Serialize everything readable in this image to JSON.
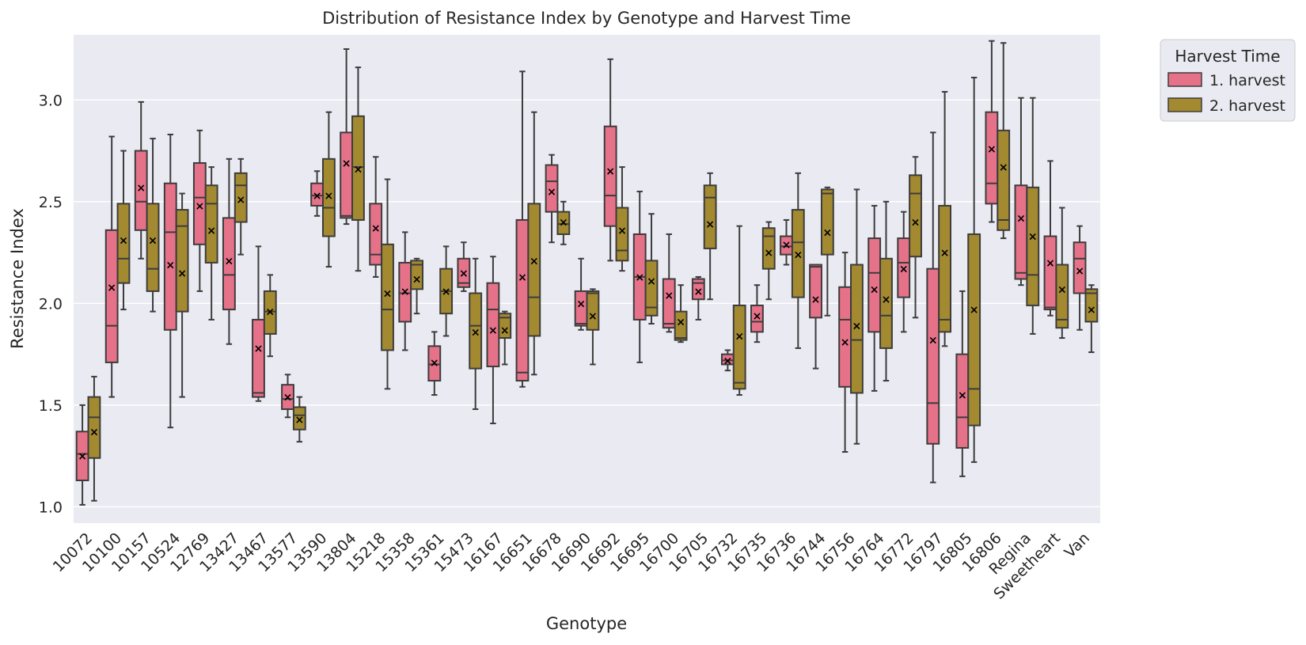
{
  "chart_data": {
    "type": "box",
    "title": "Distribution of Resistance Index by Genotype and Harvest Time",
    "xlabel": "Genotype",
    "ylabel": "Resistance Index",
    "ylim": [
      0.92,
      3.32
    ],
    "yticks": [
      "1.0",
      "1.5",
      "2.0",
      "2.5",
      "3.0"
    ],
    "grid": "horizontal",
    "legend": {
      "title": "Harvest Time",
      "placement": "outside-top-right",
      "entries": [
        "1. harvest",
        "2. harvest"
      ]
    },
    "mean_marker": "×",
    "colors": {
      "1. harvest": "#e6728a",
      "2. harvest": "#a38a30",
      "background": "#eaeaf2",
      "grid": "#ffffff",
      "box_edge": "#3c3c3c"
    },
    "categories": [
      "10072",
      "10100",
      "10157",
      "10524",
      "12769",
      "13427",
      "13467",
      "13577",
      "13590",
      "13804",
      "15218",
      "15358",
      "15361",
      "15473",
      "16167",
      "16651",
      "16678",
      "16690",
      "16692",
      "16695",
      "16700",
      "16705",
      "16732",
      "16735",
      "16736",
      "16744",
      "16756",
      "16764",
      "16772",
      "16797",
      "16805",
      "16806",
      "Regina",
      "Sweetheart",
      "Van"
    ],
    "series": [
      {
        "name": "1. harvest",
        "boxes": [
          {
            "whislo": 1.01,
            "q1": 1.13,
            "med": 1.26,
            "q3": 1.37,
            "whishi": 1.5,
            "mean": 1.25
          },
          {
            "whislo": 1.54,
            "q1": 1.71,
            "med": 1.89,
            "q3": 2.36,
            "whishi": 2.82,
            "mean": 2.08
          },
          {
            "whislo": 2.22,
            "q1": 2.36,
            "med": 2.5,
            "q3": 2.75,
            "whishi": 2.99,
            "mean": 2.57
          },
          {
            "whislo": 1.39,
            "q1": 1.87,
            "med": 2.35,
            "q3": 2.59,
            "whishi": 2.83,
            "mean": 2.19
          },
          {
            "whislo": 2.06,
            "q1": 2.29,
            "med": 2.52,
            "q3": 2.69,
            "whishi": 2.85,
            "mean": 2.48
          },
          {
            "whislo": 1.8,
            "q1": 1.97,
            "med": 2.14,
            "q3": 2.42,
            "whishi": 2.71,
            "mean": 2.21
          },
          {
            "whislo": 1.52,
            "q1": 1.54,
            "med": 1.56,
            "q3": 1.92,
            "whishi": 2.28,
            "mean": 1.78
          },
          {
            "whislo": 1.44,
            "q1": 1.48,
            "med": 1.53,
            "q3": 1.6,
            "whishi": 1.65,
            "mean": 1.54
          },
          {
            "whislo": 2.43,
            "q1": 2.48,
            "med": 2.53,
            "q3": 2.59,
            "whishi": 2.65,
            "mean": 2.53
          },
          {
            "whislo": 2.39,
            "q1": 2.42,
            "med": 2.43,
            "q3": 2.84,
            "whishi": 3.25,
            "mean": 2.69
          },
          {
            "whislo": 2.13,
            "q1": 2.19,
            "med": 2.24,
            "q3": 2.49,
            "whishi": 2.72,
            "mean": 2.37
          },
          {
            "whislo": 1.77,
            "q1": 1.91,
            "med": 2.05,
            "q3": 2.2,
            "whishi": 2.35,
            "mean": 2.06
          },
          {
            "whislo": 1.55,
            "q1": 1.62,
            "med": 1.7,
            "q3": 1.79,
            "whishi": 1.86,
            "mean": 1.71
          },
          {
            "whislo": 2.06,
            "q1": 2.08,
            "med": 2.1,
            "q3": 2.22,
            "whishi": 2.3,
            "mean": 2.15
          },
          {
            "whislo": 1.41,
            "q1": 1.69,
            "med": 1.97,
            "q3": 2.1,
            "whishi": 2.23,
            "mean": 1.87
          },
          {
            "whislo": 1.59,
            "q1": 1.62,
            "med": 1.66,
            "q3": 2.41,
            "whishi": 3.14,
            "mean": 2.13
          },
          {
            "whislo": 2.3,
            "q1": 2.45,
            "med": 2.6,
            "q3": 2.68,
            "whishi": 2.73,
            "mean": 2.55
          },
          {
            "whislo": 1.87,
            "q1": 1.89,
            "med": 1.9,
            "q3": 2.06,
            "whishi": 2.22,
            "mean": 2.0
          },
          {
            "whislo": 2.21,
            "q1": 2.38,
            "med": 2.53,
            "q3": 2.87,
            "whishi": 3.2,
            "mean": 2.65
          },
          {
            "whislo": 1.71,
            "q1": 1.92,
            "med": 2.13,
            "q3": 2.34,
            "whishi": 2.55,
            "mean": 2.13
          },
          {
            "whislo": 1.86,
            "q1": 1.88,
            "med": 1.9,
            "q3": 2.12,
            "whishi": 2.34,
            "mean": 2.04
          },
          {
            "whislo": 1.92,
            "q1": 2.02,
            "med": 2.1,
            "q3": 2.12,
            "whishi": 2.13,
            "mean": 2.06
          },
          {
            "whislo": 1.67,
            "q1": 1.7,
            "med": 1.72,
            "q3": 1.75,
            "whishi": 1.77,
            "mean": 1.72
          },
          {
            "whislo": 1.81,
            "q1": 1.86,
            "med": 1.91,
            "q3": 1.99,
            "whishi": 2.09,
            "mean": 1.94
          },
          {
            "whislo": 2.19,
            "q1": 2.24,
            "med": 2.28,
            "q3": 2.33,
            "whishi": 2.41,
            "mean": 2.29
          },
          {
            "whislo": 1.68,
            "q1": 1.93,
            "med": 2.18,
            "q3": 2.19,
            "whishi": 2.19,
            "mean": 2.02
          },
          {
            "whislo": 1.27,
            "q1": 1.59,
            "med": 1.92,
            "q3": 2.08,
            "whishi": 2.25,
            "mean": 1.81
          },
          {
            "whislo": 1.57,
            "q1": 1.86,
            "med": 2.15,
            "q3": 2.32,
            "whishi": 2.48,
            "mean": 2.07
          },
          {
            "whislo": 1.86,
            "q1": 2.03,
            "med": 2.2,
            "q3": 2.32,
            "whishi": 2.45,
            "mean": 2.17
          },
          {
            "whislo": 1.12,
            "q1": 1.31,
            "med": 1.51,
            "q3": 2.17,
            "whishi": 2.84,
            "mean": 1.82
          },
          {
            "whislo": 1.15,
            "q1": 1.29,
            "med": 1.44,
            "q3": 1.75,
            "whishi": 2.06,
            "mean": 1.55
          },
          {
            "whislo": 2.4,
            "q1": 2.49,
            "med": 2.59,
            "q3": 2.94,
            "whishi": 3.29,
            "mean": 2.76
          },
          {
            "whislo": 2.09,
            "q1": 2.12,
            "med": 2.15,
            "q3": 2.58,
            "whishi": 3.01,
            "mean": 2.42
          },
          {
            "whislo": 1.94,
            "q1": 1.97,
            "med": 1.98,
            "q3": 2.33,
            "whishi": 2.7,
            "mean": 2.2
          },
          {
            "whislo": 1.87,
            "q1": 2.05,
            "med": 2.22,
            "q3": 2.3,
            "whishi": 2.38,
            "mean": 2.16
          }
        ]
      },
      {
        "name": "2. harvest",
        "boxes": [
          {
            "whislo": 1.03,
            "q1": 1.24,
            "med": 1.44,
            "q3": 1.54,
            "whishi": 1.64,
            "mean": 1.37
          },
          {
            "whislo": 1.97,
            "q1": 2.1,
            "med": 2.22,
            "q3": 2.49,
            "whishi": 2.75,
            "mean": 2.31
          },
          {
            "whislo": 1.96,
            "q1": 2.06,
            "med": 2.17,
            "q3": 2.49,
            "whishi": 2.81,
            "mean": 2.31
          },
          {
            "whislo": 1.54,
            "q1": 1.96,
            "med": 2.38,
            "q3": 2.46,
            "whishi": 2.54,
            "mean": 2.15
          },
          {
            "whislo": 1.92,
            "q1": 2.2,
            "med": 2.49,
            "q3": 2.58,
            "whishi": 2.67,
            "mean": 2.36
          },
          {
            "whislo": 2.24,
            "q1": 2.4,
            "med": 2.58,
            "q3": 2.64,
            "whishi": 2.71,
            "mean": 2.51
          },
          {
            "whislo": 1.74,
            "q1": 1.85,
            "med": 1.96,
            "q3": 2.06,
            "whishi": 2.14,
            "mean": 1.96
          },
          {
            "whislo": 1.32,
            "q1": 1.38,
            "med": 1.45,
            "q3": 1.49,
            "whishi": 1.54,
            "mean": 1.43
          },
          {
            "whislo": 2.18,
            "q1": 2.33,
            "med": 2.47,
            "q3": 2.71,
            "whishi": 2.94,
            "mean": 2.53
          },
          {
            "whislo": 2.16,
            "q1": 2.41,
            "med": 2.67,
            "q3": 2.92,
            "whishi": 3.16,
            "mean": 2.66
          },
          {
            "whislo": 1.58,
            "q1": 1.77,
            "med": 1.97,
            "q3": 2.29,
            "whishi": 2.61,
            "mean": 2.05
          },
          {
            "whislo": 1.95,
            "q1": 2.07,
            "med": 2.19,
            "q3": 2.21,
            "whishi": 2.22,
            "mean": 2.12
          },
          {
            "whislo": 1.84,
            "q1": 1.95,
            "med": 2.06,
            "q3": 2.17,
            "whishi": 2.28,
            "mean": 2.06
          },
          {
            "whislo": 1.48,
            "q1": 1.68,
            "med": 1.89,
            "q3": 2.05,
            "whishi": 2.22,
            "mean": 1.86
          },
          {
            "whislo": 1.7,
            "q1": 1.83,
            "med": 1.93,
            "q3": 1.95,
            "whishi": 1.96,
            "mean": 1.87
          },
          {
            "whislo": 1.65,
            "q1": 1.84,
            "med": 2.03,
            "q3": 2.49,
            "whishi": 2.94,
            "mean": 2.21
          },
          {
            "whislo": 2.29,
            "q1": 2.34,
            "med": 2.39,
            "q3": 2.45,
            "whishi": 2.5,
            "mean": 2.4
          },
          {
            "whislo": 1.7,
            "q1": 1.87,
            "med": 2.05,
            "q3": 2.06,
            "whishi": 2.07,
            "mean": 1.94
          },
          {
            "whislo": 2.16,
            "q1": 2.21,
            "med": 2.26,
            "q3": 2.47,
            "whishi": 2.67,
            "mean": 2.36
          },
          {
            "whislo": 1.9,
            "q1": 1.94,
            "med": 1.98,
            "q3": 2.21,
            "whishi": 2.44,
            "mean": 2.11
          },
          {
            "whislo": 1.81,
            "q1": 1.82,
            "med": 1.83,
            "q3": 1.96,
            "whishi": 2.09,
            "mean": 1.91
          },
          {
            "whislo": 2.02,
            "q1": 2.27,
            "med": 2.52,
            "q3": 2.58,
            "whishi": 2.64,
            "mean": 2.39
          },
          {
            "whislo": 1.55,
            "q1": 1.58,
            "med": 1.61,
            "q3": 1.99,
            "whishi": 2.38,
            "mean": 1.84
          },
          {
            "whislo": 2.02,
            "q1": 2.17,
            "med": 2.33,
            "q3": 2.37,
            "whishi": 2.4,
            "mean": 2.25
          },
          {
            "whislo": 1.78,
            "q1": 2.03,
            "med": 2.3,
            "q3": 2.46,
            "whishi": 2.64,
            "mean": 2.24
          },
          {
            "whislo": 1.94,
            "q1": 2.24,
            "med": 2.54,
            "q3": 2.56,
            "whishi": 2.57,
            "mean": 2.35
          },
          {
            "whislo": 1.31,
            "q1": 1.56,
            "med": 1.82,
            "q3": 2.19,
            "whishi": 2.56,
            "mean": 1.89
          },
          {
            "whislo": 1.62,
            "q1": 1.78,
            "med": 1.94,
            "q3": 2.22,
            "whishi": 2.5,
            "mean": 2.02
          },
          {
            "whislo": 1.93,
            "q1": 2.23,
            "med": 2.54,
            "q3": 2.63,
            "whishi": 2.72,
            "mean": 2.4
          },
          {
            "whislo": 1.79,
            "q1": 1.86,
            "med": 1.92,
            "q3": 2.48,
            "whishi": 3.04,
            "mean": 2.25
          },
          {
            "whislo": 1.22,
            "q1": 1.4,
            "med": 1.58,
            "q3": 2.34,
            "whishi": 3.11,
            "mean": 1.97
          },
          {
            "whislo": 2.32,
            "q1": 2.36,
            "med": 2.41,
            "q3": 2.85,
            "whishi": 3.28,
            "mean": 2.67
          },
          {
            "whislo": 1.85,
            "q1": 1.99,
            "med": 2.14,
            "q3": 2.57,
            "whishi": 3.01,
            "mean": 2.33
          },
          {
            "whislo": 1.83,
            "q1": 1.88,
            "med": 1.92,
            "q3": 2.19,
            "whishi": 2.47,
            "mean": 2.07
          },
          {
            "whislo": 1.76,
            "q1": 1.91,
            "med": 2.05,
            "q3": 2.07,
            "whishi": 2.09,
            "mean": 1.97
          }
        ]
      }
    ]
  }
}
